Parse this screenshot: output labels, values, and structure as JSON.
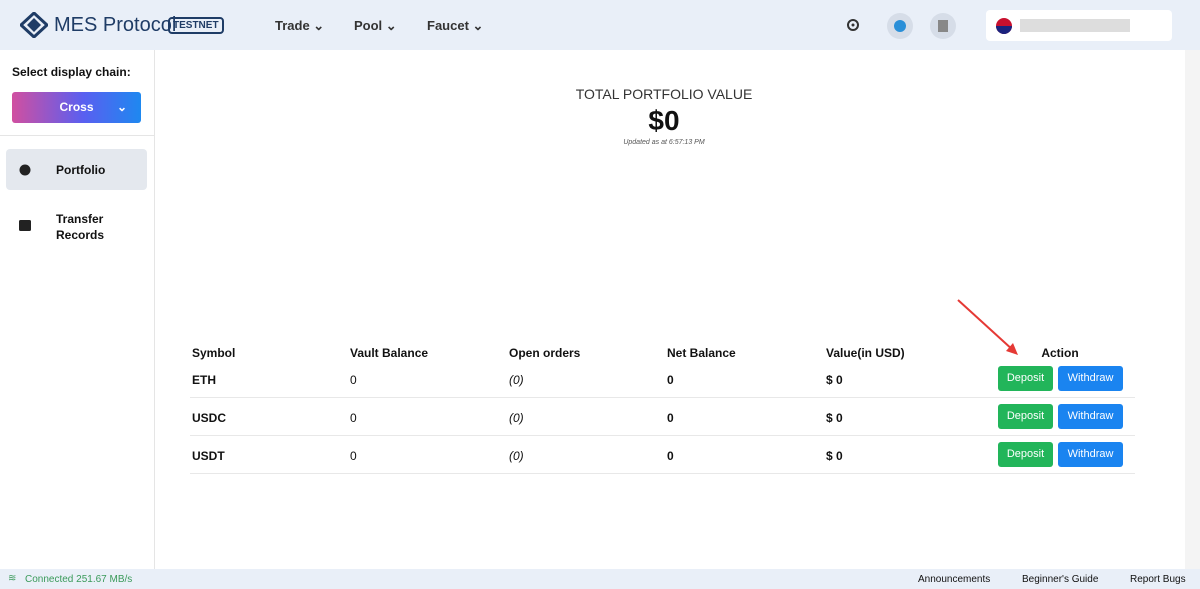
{
  "header": {
    "brand": "MES Protocol",
    "badge": "TESTNET",
    "nav": [
      "Trade",
      "Pool",
      "Faucet"
    ]
  },
  "sidebar": {
    "label": "Select display chain:",
    "chain": "Cross",
    "items": [
      "Portfolio",
      "Transfer Records"
    ]
  },
  "portfolio": {
    "title": "TOTAL PORTFOLIO VALUE",
    "value": "$0",
    "updated": "Updated as at 6:57:13 PM"
  },
  "table": {
    "headers": [
      "Symbol",
      "Vault Balance",
      "Open orders",
      "Net Balance",
      "Value(in USD)",
      "Action"
    ],
    "rows": [
      [
        "ETH",
        "0",
        "(0)",
        "0",
        "$ 0",
        "Deposit",
        "Withdraw"
      ],
      [
        "USDC",
        "0",
        "(0)",
        "0",
        "$ 0",
        "Deposit",
        "Withdraw"
      ],
      [
        "USDT",
        "0",
        "(0)",
        "0",
        "$ 0",
        "Deposit",
        "Withdraw"
      ]
    ]
  },
  "footer": {
    "status": "Connected 251.67 MB/s",
    "links": [
      "Announcements",
      "Beginner's Guide",
      "Report Bugs"
    ]
  }
}
